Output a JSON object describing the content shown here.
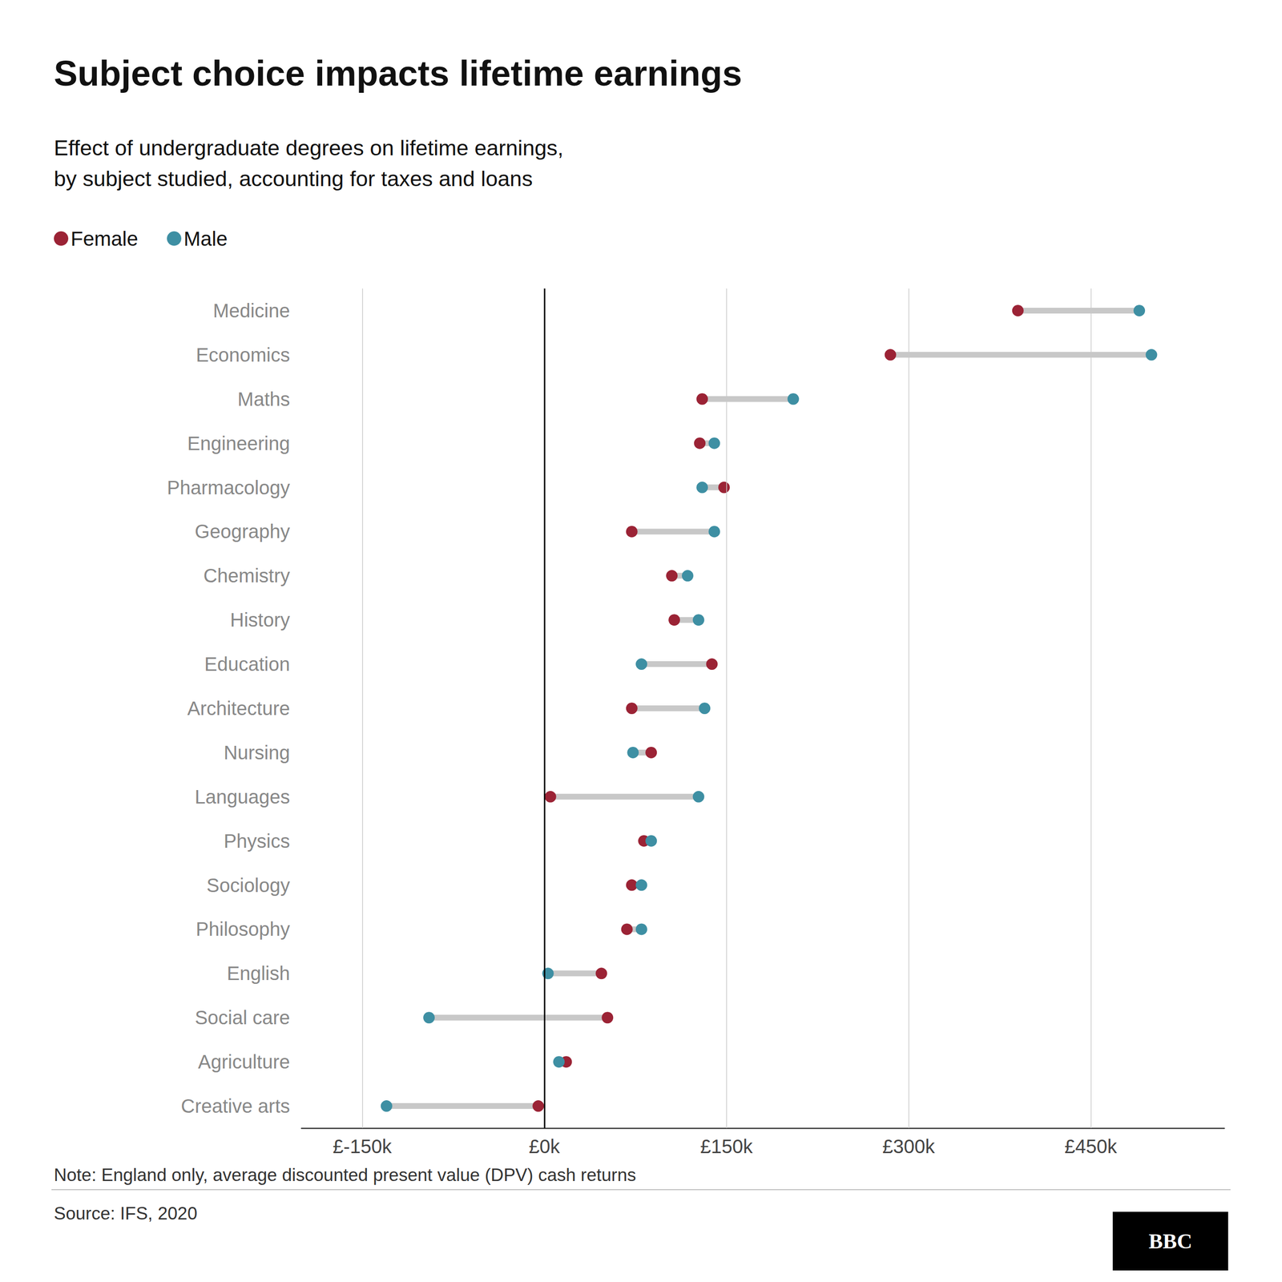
{
  "chart_data": {
    "type": "dumbbell",
    "title": "Subject choice impacts lifetime earnings",
    "subtitle": "Effect of undergraduate degrees on lifetime earnings,\nby subject studied, accounting for taxes and loans",
    "note": "Note: England only, average discounted present value (DPV) cash returns",
    "source": "Source: IFS, 2020",
    "logo": "BBC",
    "categories": [
      "Medicine",
      "Economics",
      "Maths",
      "Engineering",
      "Pharmacology",
      "Geography",
      "Chemistry",
      "History",
      "Education",
      "Architecture",
      "Nursing",
      "Languages",
      "Physics",
      "Sociology",
      "Philosophy",
      "English",
      "Social care",
      "Agriculture",
      "Creative arts"
    ],
    "series": [
      {
        "name": "Female",
        "color": "#9b2335",
        "values": [
          390,
          285,
          130,
          128,
          148,
          72,
          105,
          107,
          138,
          72,
          88,
          5,
          82,
          72,
          68,
          47,
          52,
          18,
          -5
        ]
      },
      {
        "name": "Male",
        "color": "#3e8fa3",
        "values": [
          490,
          500,
          205,
          140,
          130,
          140,
          118,
          127,
          80,
          132,
          73,
          127,
          88,
          80,
          80,
          3,
          -95,
          12,
          -130
        ]
      }
    ],
    "xlim": [
      -200,
      560
    ],
    "xticks": [
      {
        "value": -150,
        "label": "£-150k"
      },
      {
        "value": 0,
        "label": "£0k"
      },
      {
        "value": 150,
        "label": "£150k"
      },
      {
        "value": 300,
        "label": "£300k"
      },
      {
        "value": 450,
        "label": "£450k"
      }
    ],
    "grid": true,
    "legend": "top-left"
  }
}
